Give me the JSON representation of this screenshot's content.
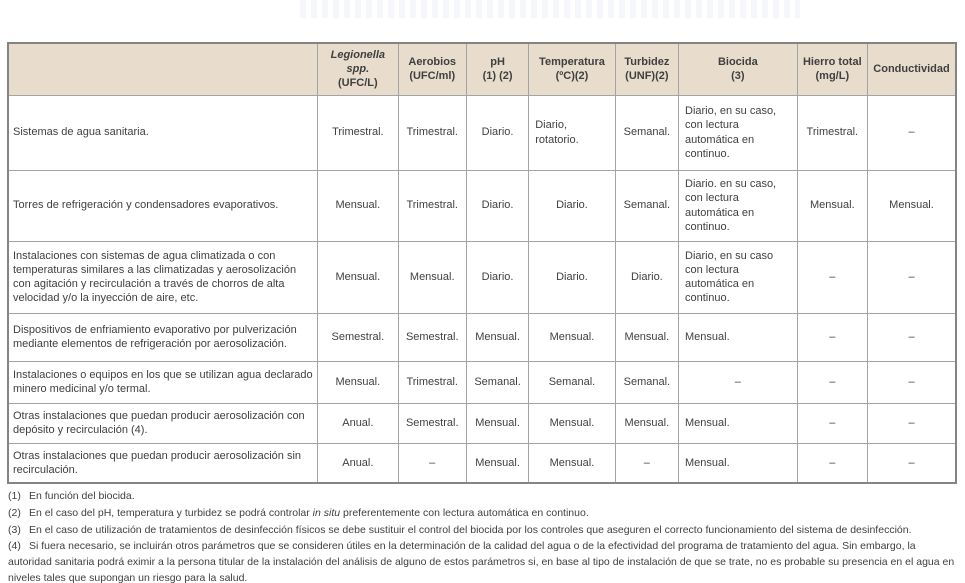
{
  "colors": {
    "header_bg": "#e8ddcd",
    "border_outer": "#848484",
    "border_inner": "#a3a3a3",
    "text": "#3f3f3f",
    "page_bg": "#ffffff"
  },
  "table": {
    "headers": [
      {
        "name": "",
        "unit": "",
        "italic": false
      },
      {
        "name": "Legionella spp.",
        "unit": "(UFC/L)",
        "italic": true
      },
      {
        "name": "Aerobios",
        "unit": "(UFC/ml)",
        "italic": false
      },
      {
        "name": "pH",
        "unit": "(1) (2)",
        "italic": false
      },
      {
        "name": "Temperatura",
        "unit": "(ºC)(2)",
        "italic": false
      },
      {
        "name": "Turbidez",
        "unit": "(UNF)(2)",
        "italic": false
      },
      {
        "name": "Biocida",
        "unit": "(3)",
        "italic": false
      },
      {
        "name": "Hierro total",
        "unit": "(mg/L)",
        "italic": false
      },
      {
        "name": "Conductividad",
        "unit": "",
        "italic": false
      }
    ],
    "rows": [
      {
        "label": "Sistemas de agua sanitaria.",
        "cells": [
          "Trimestral.",
          "Trimestral.",
          "Diario.",
          "Diario, rotatorio.",
          "Semanal.",
          "Diario, en su caso, con lectura automática en continuo.",
          "Trimestral.",
          "–"
        ]
      },
      {
        "label": "Torres de refrigeración y condensadores evaporativos.",
        "cells": [
          "Mensual.",
          "Trimestral.",
          "Diario.",
          "Diario.",
          "Semanal.",
          "Diario. en su caso, con lectura automática en continuo.",
          "Mensual.",
          "Mensual."
        ]
      },
      {
        "label": "Instalaciones con sistemas de agua climatizada o con temperaturas similares a las climatizadas y aerosolización con agitación y recirculación a través de chorros de alta velocidad y/o la inyección de aire, etc.",
        "cells": [
          "Mensual.",
          "Mensual.",
          "Diario.",
          "Diario.",
          "Diario.",
          "Diario, en su caso con lectura automática en continuo.",
          "–",
          "–"
        ]
      },
      {
        "label": "Dispositivos de enfriamiento evaporativo por pulverización mediante elementos de refrigeración por aerosolización.",
        "cells": [
          "Semestral.",
          "Semestral.",
          "Mensual.",
          "Mensual.",
          "Mensual.",
          "Mensual.",
          "–",
          "–"
        ]
      },
      {
        "label": "Instalaciones o equipos en los que se utilizan agua declarado minero medicinal y/o termal.",
        "cells": [
          "Mensual.",
          "Trimestral.",
          "Semanal.",
          "Semanal.",
          "Semanal.",
          "–",
          "–",
          "–"
        ]
      },
      {
        "label": "Otras instalaciones que puedan producir aerosolización con depósito y recirculación (4).",
        "cells": [
          "Anual.",
          "Semestral.",
          "Mensual.",
          "Mensual.",
          "Mensual.",
          "Mensual.",
          "–",
          "–"
        ]
      },
      {
        "label": "Otras instalaciones que puedan producir aerosolización sin recirculación.",
        "cells": [
          "Anual.",
          "–",
          "Mensual.",
          "Mensual.",
          "–",
          "Mensual.",
          "–",
          "–"
        ]
      }
    ]
  },
  "footnotes": {
    "items": [
      {
        "num": "(1)",
        "pre": "En función del biocida.",
        "italic": "",
        "post": ""
      },
      {
        "num": "(2)",
        "pre": "En el caso del pH, temperatura y turbidez se podrá controlar ",
        "italic": "in situ",
        "post": " preferentemente con lectura automática en continuo."
      },
      {
        "num": "(3)",
        "pre": "En el caso de utilización de tratamientos de desinfección físicos se debe sustituir el control del biocida por los controles que aseguren el correcto funcionamiento del sistema de desinfección.",
        "italic": "",
        "post": ""
      },
      {
        "num": "(4)",
        "pre": "Si fuera necesario, se incluirán otros parámetros que se consideren útiles en la determinación de la calidad del agua o de la efectividad del programa de tratamiento del agua. Sin embargo, la autoridad sanitaria podrá eximir a la persona titular de la instalación del análisis de alguno de estos parámetros si, en base al tipo de instalación de que se trate, no es probable su presencia en el agua en niveles tales que supongan un riesgo para la salud.",
        "italic": "",
        "post": ""
      }
    ]
  }
}
